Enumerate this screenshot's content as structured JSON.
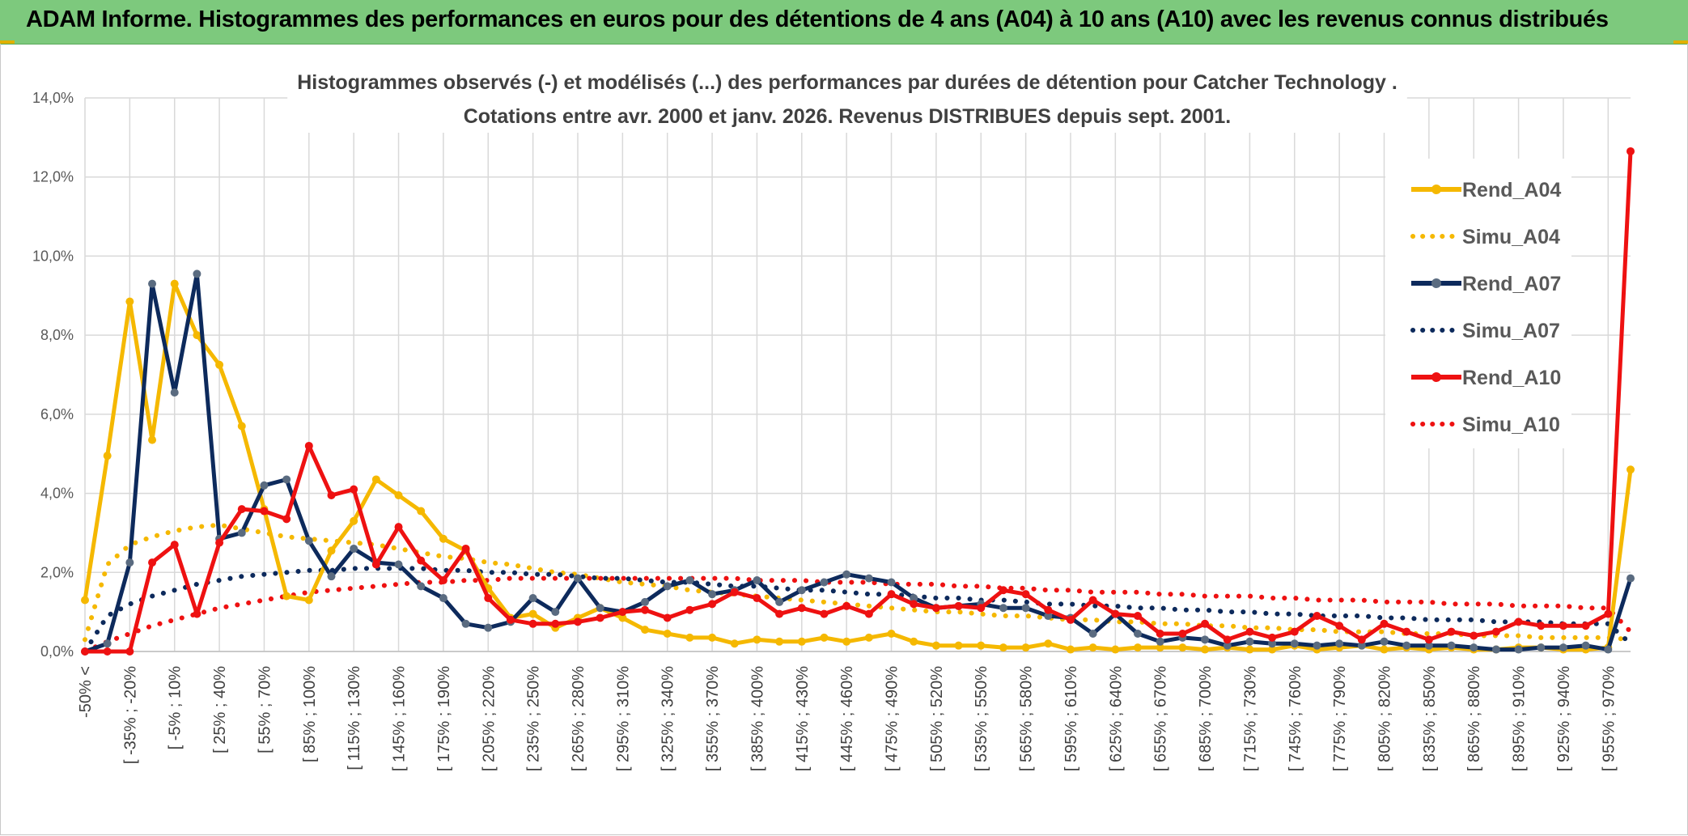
{
  "header": {
    "title": "ADAM Informe. Histogrammes des performances en euros pour des détentions de 4 ans (A04) à 10 ans (A10) avec les revenus connus distribués"
  },
  "colors": {
    "header_bg": "#7dc97d",
    "A04": "#f5b800",
    "A07": "#0d2a5c",
    "A07_marker": "#5a6b80",
    "A10": "#ee1111",
    "grid": "#d9d9d9"
  },
  "chart_data": {
    "type": "line",
    "title_lines": [
      "Histogrammes observés (-) et modélisés (...) des performances par durées de détention pour Catcher Technology .",
      "Cotations entre avr. 2000 et janv. 2026. Revenus DISTRIBUES depuis sept. 2001."
    ],
    "xlabel": "",
    "ylabel": "",
    "ylim": [
      0,
      14
    ],
    "y_ticks": [
      "0,0%",
      "2,0%",
      "4,0%",
      "6,0%",
      "8,0%",
      "10,0%",
      "12,0%",
      "14,0%"
    ],
    "x_labels": [
      "-50% <",
      "[ -35% ; -20%",
      "[ -5% ; 10%",
      "[ 25% ; 40%",
      "[ 55% ; 70%",
      "[ 85% ; 100%",
      "[ 115% ; 130%",
      "[ 145% ; 160%",
      "[ 175% ; 190%",
      "[ 205% ; 220%",
      "[ 235% ; 250%",
      "[ 265% ; 280%",
      "[ 295% ; 310%",
      "[ 325% ; 340%",
      "[ 355% ; 370%",
      "[ 385% ; 400%",
      "[ 415% ; 430%",
      "[ 445% ; 460%",
      "[ 475% ; 490%",
      "[ 505% ; 520%",
      "[ 535% ; 550%",
      "[ 565% ; 580%",
      "[ 595% ; 610%",
      "[ 625% ; 640%",
      "[ 655% ; 670%",
      "[ 685% ; 700%",
      "[ 715% ; 730%",
      "[ 745% ; 760%",
      "[ 775% ; 790%",
      "[ 805% ; 820%",
      "[ 835% ; 850%",
      "[ 865% ; 880%",
      "[ 895% ; 910%",
      "[ 925% ; 940%",
      "[ 955% ; 970%"
    ],
    "x_label_step": 2,
    "n_points": 70,
    "legend": [
      "Rend_A04",
      "Simu_A04",
      "Rend_A07",
      "Simu_A07",
      "Rend_A10",
      "Simu_A10"
    ],
    "series": [
      {
        "name": "Rend_A04",
        "style": "solid",
        "color": "#f5b800",
        "marker_color": "#f5b800",
        "values": [
          1.3,
          4.95,
          8.85,
          5.35,
          9.3,
          8.0,
          7.25,
          5.7,
          3.6,
          1.4,
          1.3,
          2.55,
          3.3,
          4.35,
          3.95,
          3.55,
          2.85,
          2.55,
          1.6,
          0.85,
          0.95,
          0.6,
          0.85,
          1.1,
          0.85,
          0.55,
          0.45,
          0.35,
          0.35,
          0.2,
          0.3,
          0.25,
          0.25,
          0.35,
          0.25,
          0.35,
          0.45,
          0.25,
          0.15,
          0.15,
          0.15,
          0.1,
          0.1,
          0.2,
          0.05,
          0.1,
          0.05,
          0.1,
          0.1,
          0.1,
          0.05,
          0.1,
          0.05,
          0.05,
          0.15,
          0.05,
          0.1,
          0.15,
          0.05,
          0.1,
          0.05,
          0.1,
          0.05,
          0.05,
          0.1,
          0.1,
          0.05,
          0.05,
          0.1,
          4.6
        ]
      },
      {
        "name": "Rend_A07",
        "style": "solid",
        "color": "#0d2a5c",
        "marker_color": "#5a6b80",
        "values": [
          0.0,
          0.2,
          2.25,
          9.3,
          6.55,
          9.55,
          2.85,
          3.0,
          4.2,
          4.35,
          2.8,
          1.9,
          2.6,
          2.25,
          2.2,
          1.65,
          1.35,
          0.7,
          0.6,
          0.75,
          1.35,
          1.0,
          1.85,
          1.1,
          1.0,
          1.25,
          1.65,
          1.8,
          1.45,
          1.55,
          1.8,
          1.25,
          1.55,
          1.75,
          1.95,
          1.85,
          1.75,
          1.35,
          1.1,
          1.15,
          1.2,
          1.1,
          1.1,
          0.9,
          0.85,
          0.45,
          0.95,
          0.45,
          0.25,
          0.35,
          0.3,
          0.15,
          0.25,
          0.2,
          0.2,
          0.15,
          0.2,
          0.15,
          0.25,
          0.15,
          0.15,
          0.15,
          0.1,
          0.05,
          0.05,
          0.1,
          0.1,
          0.15,
          0.05,
          1.85
        ]
      },
      {
        "name": "Rend_A10",
        "style": "solid",
        "color": "#ee1111",
        "marker_color": "#ee1111",
        "values": [
          0.0,
          0.0,
          0.0,
          2.25,
          2.7,
          0.95,
          2.75,
          3.6,
          3.55,
          3.35,
          5.2,
          3.95,
          4.1,
          2.2,
          3.15,
          2.3,
          1.8,
          2.6,
          1.35,
          0.8,
          0.7,
          0.7,
          0.75,
          0.85,
          1.0,
          1.05,
          0.85,
          1.05,
          1.2,
          1.5,
          1.35,
          0.95,
          1.1,
          0.95,
          1.15,
          0.95,
          1.45,
          1.2,
          1.1,
          1.15,
          1.1,
          1.55,
          1.45,
          1.05,
          0.8,
          1.3,
          0.95,
          0.9,
          0.45,
          0.45,
          0.7,
          0.3,
          0.5,
          0.35,
          0.5,
          0.9,
          0.65,
          0.3,
          0.7,
          0.5,
          0.3,
          0.5,
          0.4,
          0.5,
          0.75,
          0.65,
          0.65,
          0.65,
          0.95,
          12.65
        ]
      },
      {
        "name": "Simu_A04",
        "style": "dotted",
        "color": "#f5b800",
        "values": [
          0.3,
          2.2,
          2.7,
          2.9,
          3.05,
          3.15,
          3.2,
          3.1,
          3.0,
          2.9,
          2.85,
          2.8,
          2.75,
          2.7,
          2.6,
          2.5,
          2.4,
          2.35,
          2.25,
          2.2,
          2.1,
          2.0,
          1.95,
          1.85,
          1.75,
          1.7,
          1.65,
          1.55,
          1.5,
          1.45,
          1.4,
          1.35,
          1.3,
          1.25,
          1.2,
          1.15,
          1.1,
          1.05,
          1.0,
          1.0,
          0.95,
          0.9,
          0.9,
          0.85,
          0.8,
          0.8,
          0.75,
          0.75,
          0.7,
          0.7,
          0.65,
          0.65,
          0.6,
          0.6,
          0.55,
          0.55,
          0.5,
          0.5,
          0.5,
          0.45,
          0.45,
          0.45,
          0.4,
          0.4,
          0.4,
          0.35,
          0.35,
          0.35,
          0.35,
          0.3
        ]
      },
      {
        "name": "Simu_A07",
        "style": "dotted",
        "color": "#0d2a5c",
        "values": [
          0.0,
          0.9,
          1.2,
          1.4,
          1.55,
          1.7,
          1.8,
          1.9,
          1.95,
          2.0,
          2.05,
          2.05,
          2.1,
          2.1,
          2.1,
          2.1,
          2.05,
          2.05,
          2.0,
          2.0,
          1.95,
          1.95,
          1.9,
          1.85,
          1.85,
          1.8,
          1.75,
          1.75,
          1.7,
          1.65,
          1.65,
          1.6,
          1.55,
          1.55,
          1.5,
          1.45,
          1.45,
          1.4,
          1.35,
          1.35,
          1.3,
          1.3,
          1.25,
          1.2,
          1.2,
          1.15,
          1.15,
          1.1,
          1.1,
          1.05,
          1.05,
          1.0,
          1.0,
          0.95,
          0.95,
          0.9,
          0.9,
          0.9,
          0.85,
          0.85,
          0.8,
          0.8,
          0.8,
          0.75,
          0.75,
          0.75,
          0.7,
          0.7,
          0.7,
          0.2
        ]
      },
      {
        "name": "Simu_A10",
        "style": "dotted",
        "color": "#ee1111",
        "values": [
          0.0,
          0.25,
          0.45,
          0.65,
          0.8,
          0.95,
          1.1,
          1.2,
          1.3,
          1.4,
          1.5,
          1.55,
          1.6,
          1.65,
          1.7,
          1.75,
          1.75,
          1.8,
          1.8,
          1.85,
          1.85,
          1.85,
          1.85,
          1.85,
          1.85,
          1.85,
          1.85,
          1.85,
          1.85,
          1.85,
          1.8,
          1.8,
          1.8,
          1.75,
          1.75,
          1.75,
          1.7,
          1.7,
          1.7,
          1.65,
          1.65,
          1.6,
          1.6,
          1.55,
          1.55,
          1.5,
          1.5,
          1.5,
          1.45,
          1.45,
          1.4,
          1.4,
          1.4,
          1.35,
          1.35,
          1.3,
          1.3,
          1.3,
          1.25,
          1.25,
          1.25,
          1.2,
          1.2,
          1.2,
          1.15,
          1.15,
          1.15,
          1.1,
          1.1,
          0.5
        ]
      }
    ]
  }
}
